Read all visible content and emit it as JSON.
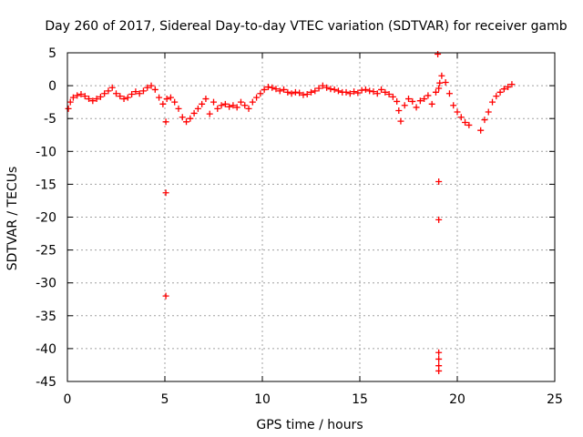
{
  "chart_data": {
    "type": "scatter",
    "title": "Day 260 of 2017, Sidereal Day-to-day VTEC variation (SDTVAR) for receiver gamb",
    "xlabel": "GPS time / hours",
    "ylabel": "SDTVAR / TECUs",
    "xlim": [
      0,
      25
    ],
    "ylim": [
      -45,
      5
    ],
    "xticks": [
      0,
      5,
      10,
      15,
      20,
      25
    ],
    "yticks": [
      5,
      0,
      -5,
      -10,
      -15,
      -20,
      -25,
      -30,
      -35,
      -40,
      -45
    ],
    "grid": true,
    "marker": "plus",
    "color": "#ff0000",
    "series": [
      {
        "name": "SDTVAR",
        "x": [
          0.05,
          0.15,
          0.3,
          0.5,
          0.7,
          0.9,
          1.1,
          1.3,
          1.5,
          1.7,
          1.9,
          2.1,
          2.3,
          2.5,
          2.7,
          2.9,
          3.1,
          3.3,
          3.5,
          3.7,
          3.9,
          4.1,
          4.3,
          4.5,
          4.7,
          4.9,
          5.05,
          5.05,
          5.05,
          5.1,
          5.3,
          5.5,
          5.7,
          5.9,
          6.1,
          6.3,
          6.5,
          6.7,
          6.9,
          7.1,
          7.3,
          7.5,
          7.7,
          7.9,
          8.1,
          8.3,
          8.5,
          8.7,
          8.9,
          9.1,
          9.3,
          9.5,
          9.7,
          9.9,
          10.1,
          10.3,
          10.5,
          10.7,
          10.9,
          11.1,
          11.3,
          11.5,
          11.7,
          11.9,
          12.1,
          12.3,
          12.5,
          12.7,
          12.9,
          13.1,
          13.3,
          13.5,
          13.7,
          13.9,
          14.1,
          14.3,
          14.5,
          14.7,
          14.9,
          15.1,
          15.3,
          15.5,
          15.7,
          15.9,
          16.1,
          16.3,
          16.5,
          16.7,
          16.9,
          17.0,
          17.1,
          17.3,
          17.5,
          17.7,
          17.9,
          18.1,
          18.3,
          18.5,
          18.7,
          18.9,
          19.0,
          19.05,
          19.05,
          19.05,
          19.05,
          19.05,
          19.05,
          19.05,
          19.1,
          19.2,
          19.4,
          19.6,
          19.8,
          20.0,
          20.2,
          20.4,
          20.6,
          21.2,
          21.4,
          21.6,
          21.8,
          22.0,
          22.2,
          22.4,
          22.6,
          22.8
        ],
        "y": [
          -3.5,
          -2.5,
          -1.8,
          -1.5,
          -1.3,
          -1.6,
          -2.0,
          -2.3,
          -2.0,
          -1.7,
          -1.2,
          -0.8,
          -0.3,
          -1.2,
          -1.6,
          -2.0,
          -1.8,
          -1.3,
          -0.9,
          -1.2,
          -0.8,
          -0.3,
          0.0,
          -0.6,
          -1.8,
          -2.8,
          -5.5,
          -16.3,
          -32.0,
          -2.0,
          -1.8,
          -2.5,
          -3.5,
          -4.8,
          -5.5,
          -5.0,
          -4.2,
          -3.5,
          -2.8,
          -2.0,
          -4.3,
          -2.5,
          -3.5,
          -3.0,
          -2.8,
          -3.2,
          -3.0,
          -3.3,
          -2.5,
          -3.0,
          -3.5,
          -2.5,
          -1.8,
          -1.2,
          -0.6,
          -0.2,
          -0.3,
          -0.5,
          -0.8,
          -0.6,
          -1.0,
          -1.2,
          -1.0,
          -1.1,
          -1.4,
          -1.3,
          -1.0,
          -0.8,
          -0.4,
          0.0,
          -0.3,
          -0.5,
          -0.6,
          -0.8,
          -1.0,
          -1.0,
          -1.2,
          -0.9,
          -1.1,
          -0.7,
          -0.6,
          -0.8,
          -0.9,
          -1.2,
          -0.6,
          -1.0,
          -1.3,
          -1.7,
          -2.4,
          -3.8,
          -5.4,
          -3.0,
          -2.0,
          -2.4,
          -3.3,
          -2.3,
          -2.0,
          -1.5,
          -2.8,
          -1.0,
          4.8,
          -14.6,
          -20.4,
          -40.6,
          -41.6,
          -42.6,
          -43.4,
          -0.4,
          0.4,
          1.5,
          0.5,
          -1.2,
          -3.0,
          -4.0,
          -4.8,
          -5.6,
          -6.0,
          -6.8,
          -5.2,
          -4.0,
          -2.5,
          -1.6,
          -1.0,
          -0.5,
          -0.2,
          0.2
        ]
      }
    ]
  }
}
